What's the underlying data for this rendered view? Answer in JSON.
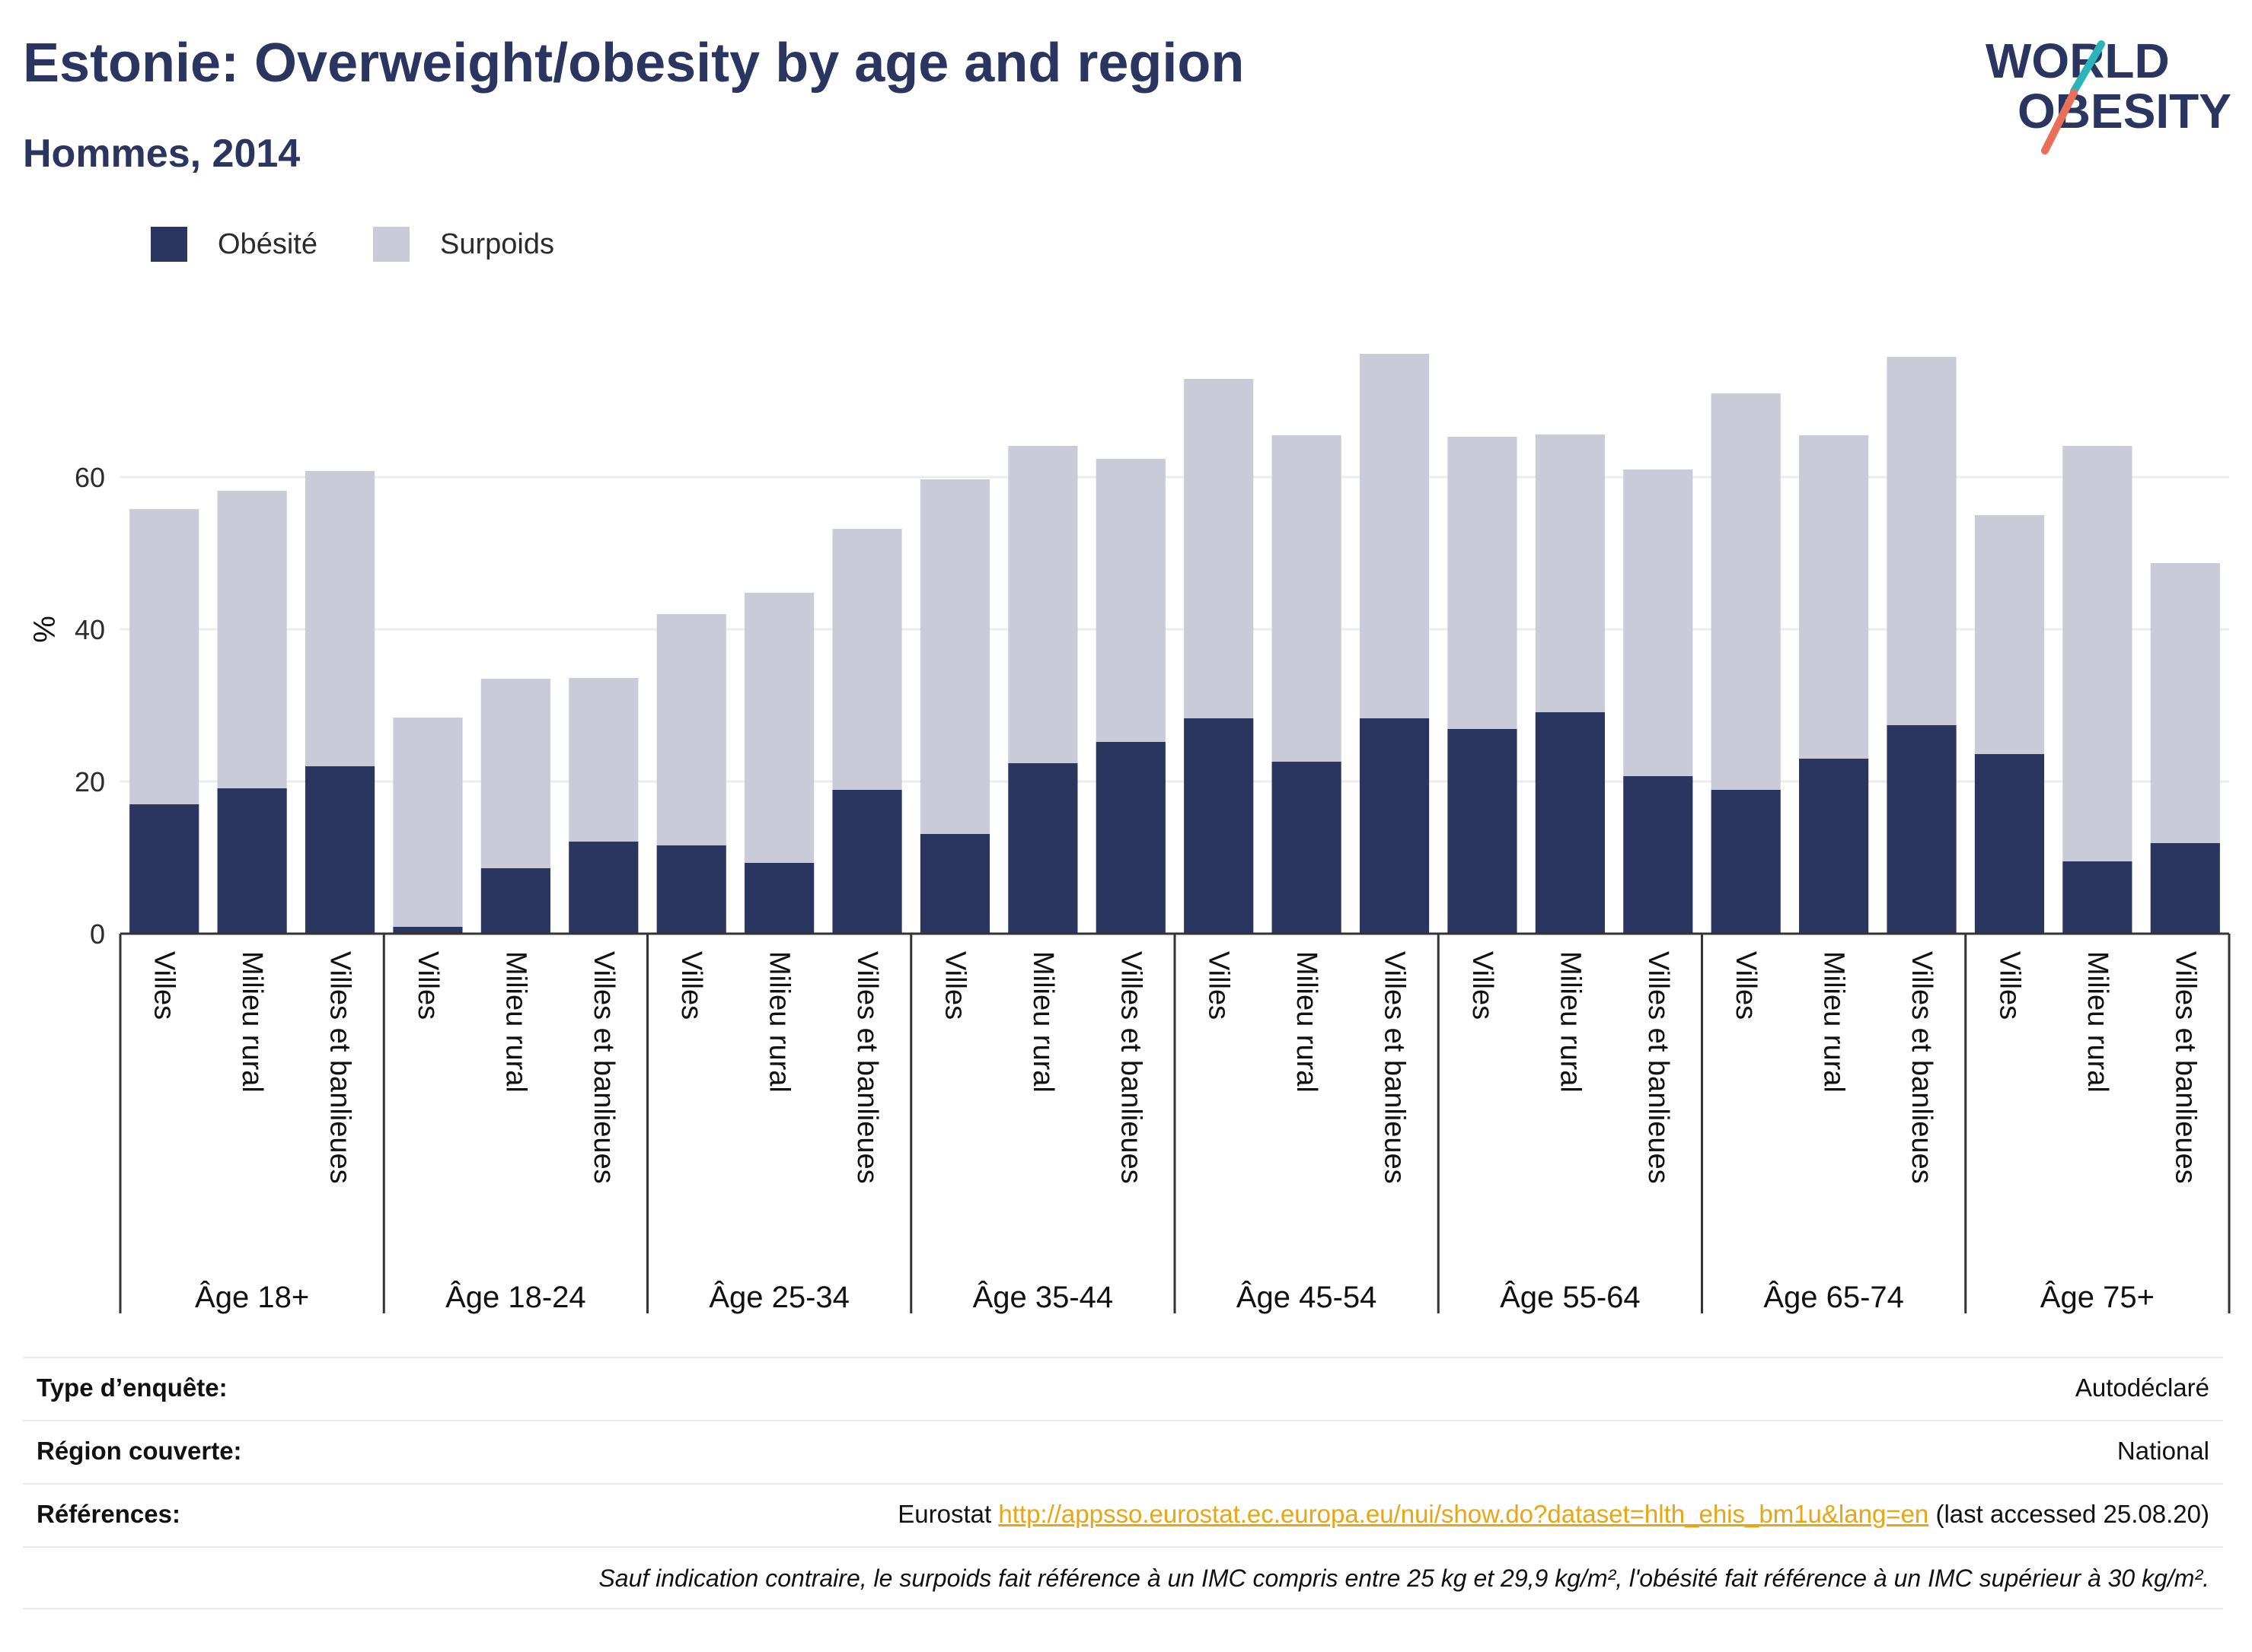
{
  "title": "Estonie: Overweight/obesity by age and region",
  "subtitle": "Hommes, 2014",
  "logo": {
    "line1": "WORLD",
    "line2": "OBESITY",
    "colors": {
      "text": "#2a3560",
      "slash_teal": "#2bb5b8",
      "slash_coral": "#e86f5a"
    }
  },
  "colors": {
    "obesity": "#2a3560",
    "overweight": "#c9cbd8",
    "axis": "#333333",
    "grid": "#ececec"
  },
  "legend": [
    {
      "label": "Obésité",
      "color": "#2a3560"
    },
    {
      "label": "Surpoids",
      "color": "#c9cbd8"
    }
  ],
  "chart_data": {
    "type": "bar",
    "stacked": true,
    "ylabel": "%",
    "ylim": [
      0,
      80
    ],
    "yticks": [
      0,
      20,
      40,
      60
    ],
    "grid": true,
    "legend_position": "top-left",
    "groups": [
      {
        "label": "Âge 18+",
        "bars": [
          {
            "category": "Villes",
            "obesite": 17.0,
            "total": 55.8
          },
          {
            "category": "Milieu rural",
            "obesite": 19.1,
            "total": 58.2
          },
          {
            "category": "Villes et banlieues",
            "obesite": 22.0,
            "total": 60.8
          }
        ]
      },
      {
        "label": "Âge 18-24",
        "bars": [
          {
            "category": "Villes",
            "obesite": 0.9,
            "total": 28.4
          },
          {
            "category": "Milieu rural",
            "obesite": 8.6,
            "total": 33.5
          },
          {
            "category": "Villes et banlieues",
            "obesite": 12.1,
            "total": 33.6
          }
        ]
      },
      {
        "label": "Âge 25-34",
        "bars": [
          {
            "category": "Villes",
            "obesite": 11.6,
            "total": 42.0
          },
          {
            "category": "Milieu rural",
            "obesite": 9.3,
            "total": 44.8
          },
          {
            "category": "Villes et banlieues",
            "obesite": 18.9,
            "total": 53.2
          }
        ]
      },
      {
        "label": "Âge 35-44",
        "bars": [
          {
            "category": "Villes",
            "obesite": 13.1,
            "total": 59.7
          },
          {
            "category": "Milieu rural",
            "obesite": 22.4,
            "total": 64.1
          },
          {
            "category": "Villes et banlieues",
            "obesite": 25.2,
            "total": 62.4
          }
        ]
      },
      {
        "label": "Âge 45-54",
        "bars": [
          {
            "category": "Villes",
            "obesite": 28.3,
            "total": 72.9
          },
          {
            "category": "Milieu rural",
            "obesite": 22.6,
            "total": 65.5
          },
          {
            "category": "Villes et banlieues",
            "obesite": 28.3,
            "total": 76.2
          }
        ]
      },
      {
        "label": "Âge 55-64",
        "bars": [
          {
            "category": "Villes",
            "obesite": 26.9,
            "total": 65.3
          },
          {
            "category": "Milieu rural",
            "obesite": 29.1,
            "total": 65.6
          },
          {
            "category": "Villes et banlieues",
            "obesite": 20.7,
            "total": 61.0
          }
        ]
      },
      {
        "label": "Âge 65-74",
        "bars": [
          {
            "category": "Villes",
            "obesite": 18.9,
            "total": 71.0
          },
          {
            "category": "Milieu rural",
            "obesite": 23.0,
            "total": 65.5
          },
          {
            "category": "Villes et banlieues",
            "obesite": 27.4,
            "total": 75.8
          }
        ]
      },
      {
        "label": "Âge 75+",
        "bars": [
          {
            "category": "Villes",
            "obesite": 23.6,
            "total": 55.0
          },
          {
            "category": "Milieu rural",
            "obesite": 9.5,
            "total": 64.1
          },
          {
            "category": "Villes et banlieues",
            "obesite": 11.9,
            "total": 48.7
          }
        ]
      }
    ]
  },
  "info": {
    "survey_type": {
      "label": "Type d’enquête:",
      "value": "Autodéclaré"
    },
    "region": {
      "label": "Région couverte:",
      "value": "National"
    },
    "references": {
      "label": "Références:",
      "prefix": "Eurostat ",
      "link": "http://appsso.eurostat.ec.europa.eu/nui/show.do?dataset=hlth_ehis_bm1u&lang=en",
      "suffix": " (last accessed 25.08.20)"
    },
    "note": "Sauf indication contraire, le surpoids fait référence à un IMC compris entre 25 kg et 29,9 kg/m², l'obésité fait référence à un IMC supérieur à 30 kg/m²."
  }
}
